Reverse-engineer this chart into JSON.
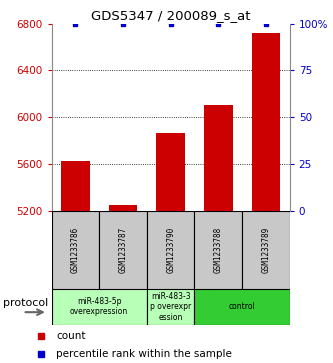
{
  "title": "GDS5347 / 200089_s_at",
  "samples": [
    "GSM1233786",
    "GSM1233787",
    "GSM1233790",
    "GSM1233788",
    "GSM1233789"
  ],
  "counts": [
    5620,
    5245,
    5860,
    6100,
    6720
  ],
  "percentiles": [
    100,
    100,
    100,
    100,
    100
  ],
  "ylim_left": [
    5200,
    6800
  ],
  "ylim_right": [
    0,
    100
  ],
  "yticks_left": [
    5200,
    5600,
    6000,
    6400,
    6800
  ],
  "yticks_right": [
    0,
    25,
    50,
    75,
    100
  ],
  "bar_color": "#cc0000",
  "dot_color": "#0000cc",
  "background_color": "#ffffff",
  "sample_box_color": "#c8c8c8",
  "group1_color": "#b8ffb8",
  "group2_color": "#33cc33",
  "legend_count_color": "#cc0000",
  "legend_pct_color": "#0000cc",
  "groups": [
    {
      "start": 0,
      "end": 1,
      "label": "miR-483-5p\noverexpression",
      "color": "#b8ffb8"
    },
    {
      "start": 2,
      "end": 2,
      "label": "miR-483-3\np overexpr\nession",
      "color": "#b8ffb8"
    },
    {
      "start": 3,
      "end": 4,
      "label": "control",
      "color": "#33cc33"
    }
  ]
}
